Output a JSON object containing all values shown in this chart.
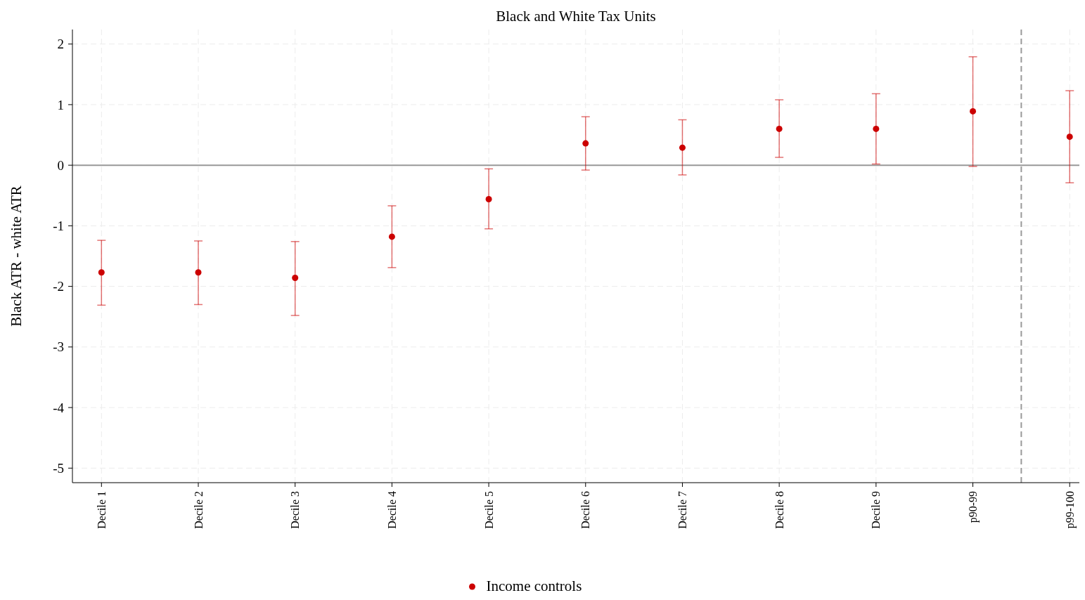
{
  "chart_data": {
    "type": "scatter",
    "title": "Black and White Tax Units",
    "ylabel": "Black ATR - white ATR",
    "categories": [
      "Decile 1",
      "Decile 2",
      "Decile 3",
      "Decile 4",
      "Decile 5",
      "Decile 6",
      "Decile 7",
      "Decile 8",
      "Decile 9",
      "p90-99",
      "p99-100"
    ],
    "ylim": [
      -5.24,
      2.24
    ],
    "yticks": [
      -5,
      -4,
      -3,
      -2,
      -1,
      0,
      1,
      2
    ],
    "series": [
      {
        "name": "Income controls",
        "color": "#cc0000",
        "values": [
          -1.77,
          -1.77,
          -1.86,
          -1.18,
          -0.56,
          0.36,
          0.29,
          0.6,
          0.6,
          0.89,
          0.47
        ],
        "errors": [
          [
            -2.31,
            -1.24
          ],
          [
            -2.3,
            -1.25
          ],
          [
            -2.48,
            -1.26
          ],
          [
            -1.69,
            -0.67
          ],
          [
            -1.05,
            -0.06
          ],
          [
            -0.08,
            0.8
          ],
          [
            -0.16,
            0.75
          ],
          [
            0.13,
            1.08
          ],
          [
            0.02,
            1.18
          ],
          [
            -0.02,
            1.79
          ],
          [
            -0.29,
            1.23
          ]
        ]
      }
    ],
    "ref_lines": [
      {
        "axis": "y",
        "value": 0,
        "color": "#999999",
        "line_style": "solid"
      }
    ],
    "grid": true,
    "legend": "bottom",
    "marker": "circle"
  }
}
